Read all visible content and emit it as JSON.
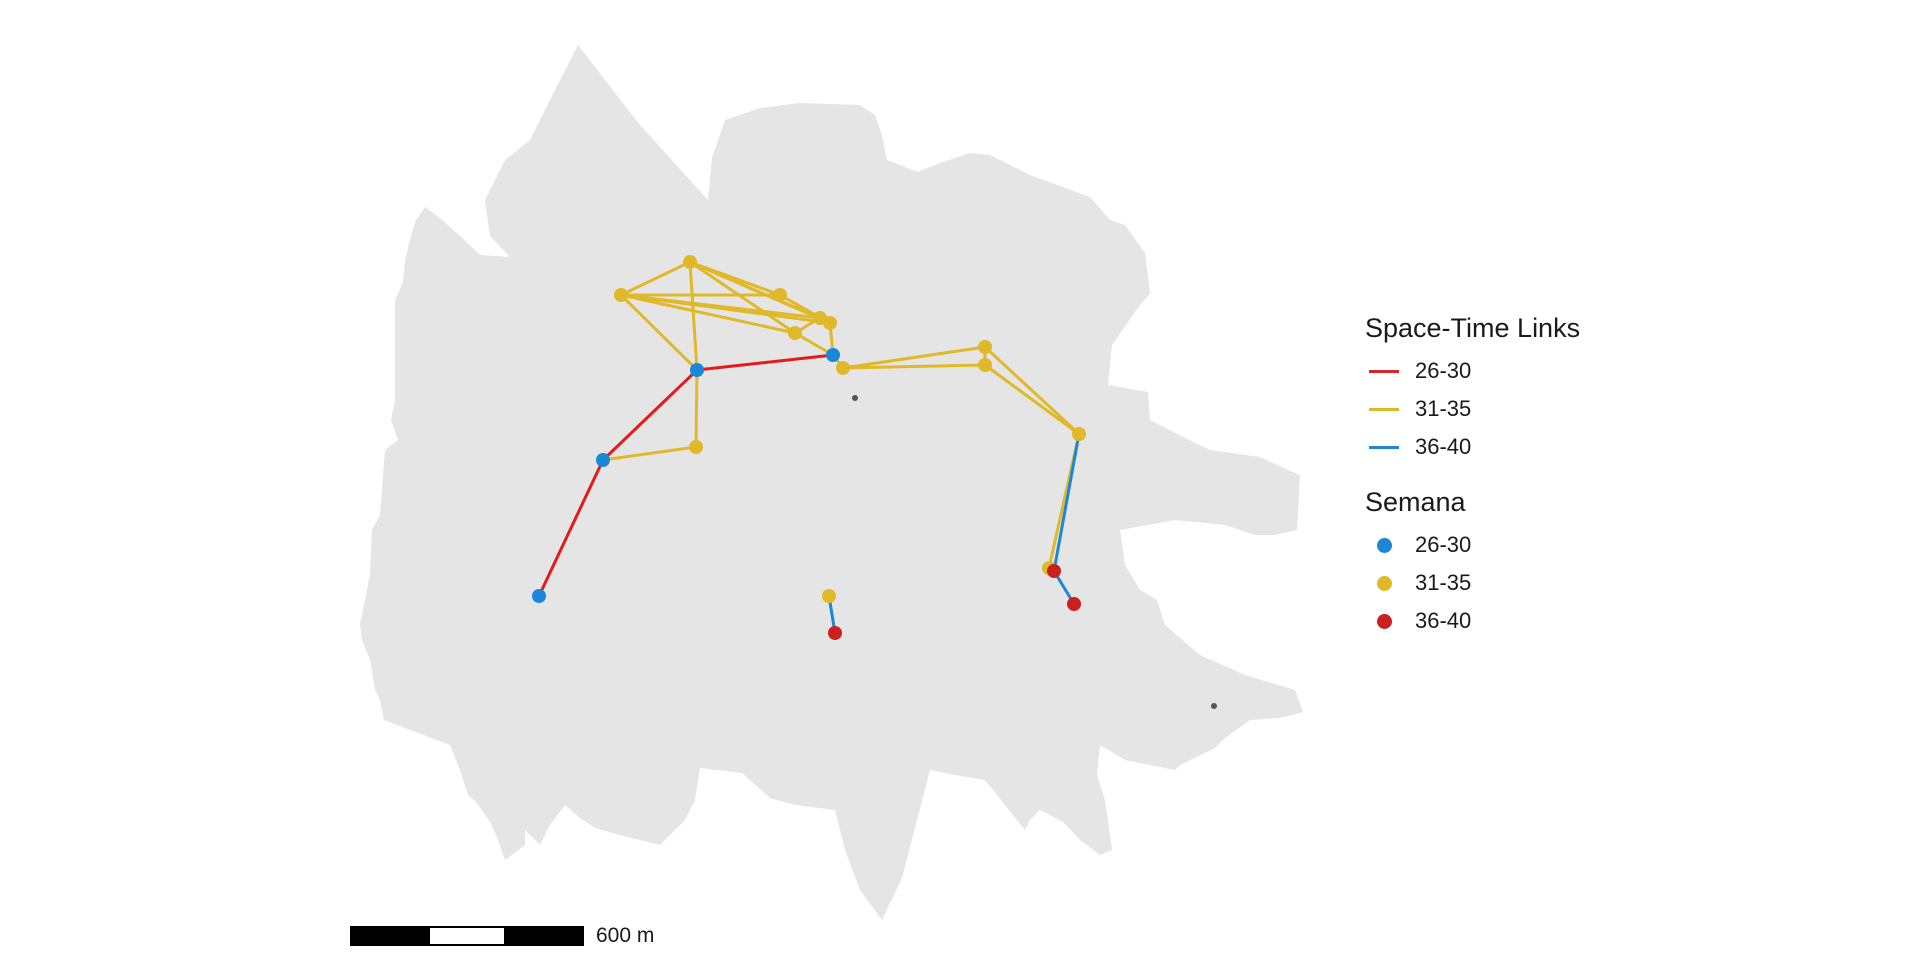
{
  "colors": {
    "land": "#e5e5e5",
    "background": "#ffffff",
    "26-30": "#e41a1c",
    "31-35": "#e0b92a",
    "36-40": "#1a87d9",
    "point_26-30": "#1a87d9",
    "point_31-35": "#e0b92a",
    "point_36-40": "#cc2020",
    "centroid": "#555555"
  },
  "legend_links": {
    "title": "Space-Time Links",
    "items": [
      {
        "label": "26-30",
        "color": "#d62728"
      },
      {
        "label": "31-35",
        "color": "#e0b92a"
      },
      {
        "label": "36-40",
        "color": "#1f86d6"
      }
    ]
  },
  "legend_points": {
    "title": "Semana",
    "items": [
      {
        "label": "26-30",
        "color": "#1a87d9"
      },
      {
        "label": "31-35",
        "color": "#e0b92a"
      },
      {
        "label": "36-40",
        "color": "#cc2020"
      }
    ]
  },
  "scalebar": {
    "label": "600 m",
    "segments": [
      "black",
      "white",
      "black"
    ]
  }
}
